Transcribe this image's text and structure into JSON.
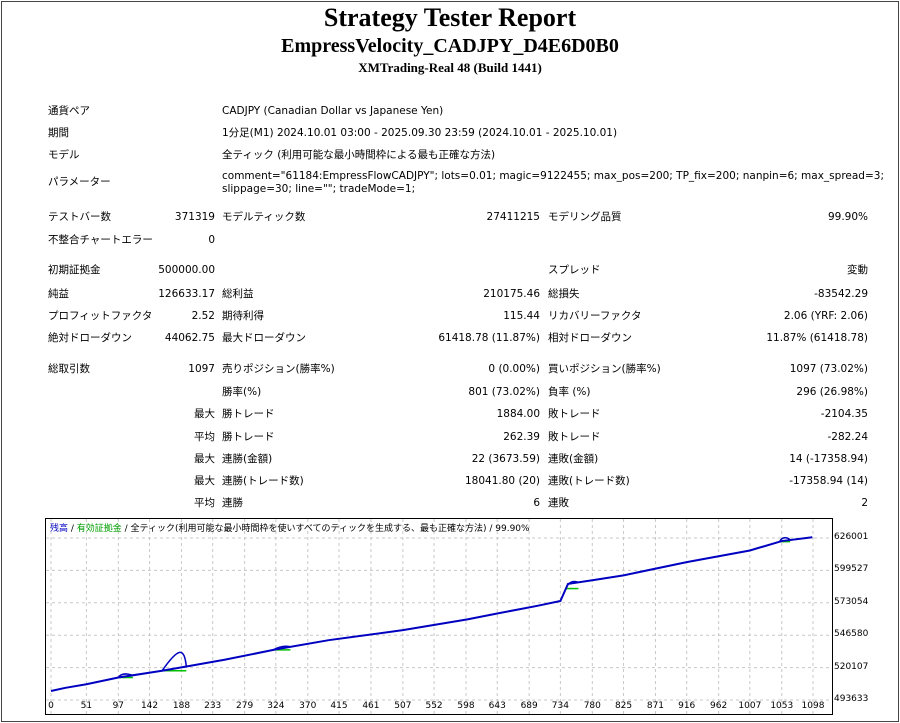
{
  "header": {
    "title": "Strategy Tester Report",
    "subtitle": "EmpressVelocity_CADJPY_D4E6D0B0",
    "server": "XMTrading-Real 48 (Build 1441)"
  },
  "info": [
    {
      "label": "通貨ペア",
      "value": "CADJPY (Canadian Dollar vs Japanese Yen)"
    },
    {
      "label": "期間",
      "value": "1分足(M1) 2024.10.01 03:00 - 2025.09.30 23:59 (2024.10.01 - 2025.10.01)"
    },
    {
      "label": "モデル",
      "value": "全ティック (利用可能な最小時間枠による最も正確な方法)"
    },
    {
      "label": "パラメーター",
      "value": "comment=\"61184:EmpressFlowCADJPY\"; lots=0.01; magic=9122455; max_pos=200; TP_fix=200; nanpin=6; max_spread=3;",
      "value2": "slippage=30; line=\"\"; tradeMode=1;"
    }
  ],
  "rows": [
    [
      "テストバー数",
      "371319",
      "モデルティック数",
      "27411215",
      "モデリング品質",
      "99.90%"
    ],
    [
      "不整合チャートエラー",
      "0",
      "",
      "",
      "",
      ""
    ],
    [
      "初期証拠金",
      "500000.00",
      "",
      "",
      "スプレッド",
      "変動"
    ],
    [
      "純益",
      "126633.17",
      "総利益",
      "210175.46",
      "総損失",
      "-83542.29"
    ],
    [
      "プロフィットファクタ",
      "2.52",
      "期待利得",
      "115.44",
      "リカバリーファクタ",
      "2.06 (YRF: 2.06)"
    ],
    [
      "絶対ドローダウン",
      "44062.75",
      "最大ドローダウン",
      "61418.78 (11.87%)",
      "相対ドローダウン",
      "11.87% (61418.78)"
    ],
    [
      "総取引数",
      "1097",
      "売りポジション(勝率%)",
      "0 (0.00%)",
      "買いポジション(勝率%)",
      "1097 (73.02%)"
    ],
    [
      "",
      "",
      "勝率(%)",
      "801 (73.02%)",
      "負率 (%)",
      "296 (26.98%)"
    ],
    [
      "",
      "最大",
      "勝トレード",
      "1884.00",
      "敗トレード",
      "-2104.35"
    ],
    [
      "",
      "平均",
      "勝トレード",
      "262.39",
      "敗トレード",
      "-282.24"
    ],
    [
      "",
      "最大",
      "連勝(金額)",
      "22 (3673.59)",
      "連敗(金額)",
      "14 (-17358.94)"
    ],
    [
      "",
      "最大",
      "連勝(トレード数)",
      "18041.80 (20)",
      "連敗(トレード数)",
      "-17358.94 (14)"
    ],
    [
      "",
      "平均",
      "連勝",
      "6",
      "連敗",
      "2"
    ]
  ],
  "chart": {
    "legend_balance": "残高",
    "legend_sep": " / ",
    "legend_equity": "有効証拠金",
    "legend_model": " / 全ティック(利用可能な最小時間枠を使いすべてのティックを生成する、最も正確な方法) / 99.90%",
    "colors": {
      "balance": "#0000c0",
      "equity": "#00c000",
      "grid": "#c8c8c8"
    },
    "y_ticks": [
      "626001",
      "599527",
      "573054",
      "546580",
      "520107",
      "493633"
    ],
    "x_ticks": [
      "0",
      "51",
      "97",
      "142",
      "188",
      "233",
      "279",
      "324",
      "370",
      "415",
      "461",
      "507",
      "552",
      "598",
      "643",
      "689",
      "734",
      "780",
      "825",
      "871",
      "916",
      "962",
      "1007",
      "1053",
      "1098"
    ],
    "ylim": [
      493633,
      626001
    ],
    "xlim": [
      0,
      1098
    ],
    "balance": [
      [
        0,
        501000
      ],
      [
        20,
        503500
      ],
      [
        51,
        506500
      ],
      [
        97,
        512000
      ],
      [
        160,
        517500
      ],
      [
        190,
        520500
      ],
      [
        250,
        526500
      ],
      [
        324,
        535000
      ],
      [
        400,
        542500
      ],
      [
        507,
        550700
      ],
      [
        600,
        559500
      ],
      [
        643,
        564300
      ],
      [
        700,
        570500
      ],
      [
        734,
        574500
      ],
      [
        745,
        588500
      ],
      [
        780,
        591500
      ],
      [
        825,
        595500
      ],
      [
        916,
        606300
      ],
      [
        1007,
        615800
      ],
      [
        1053,
        623500
      ],
      [
        1097,
        626633
      ]
    ],
    "equity_bumps": [
      [
        105,
        515500,
        97,
        118
      ],
      [
        188,
        537000,
        160,
        195
      ],
      [
        335,
        538000,
        320,
        345
      ],
      [
        750,
        591000,
        742,
        760
      ],
      [
        1057,
        627000,
        1050,
        1065
      ]
    ]
  }
}
